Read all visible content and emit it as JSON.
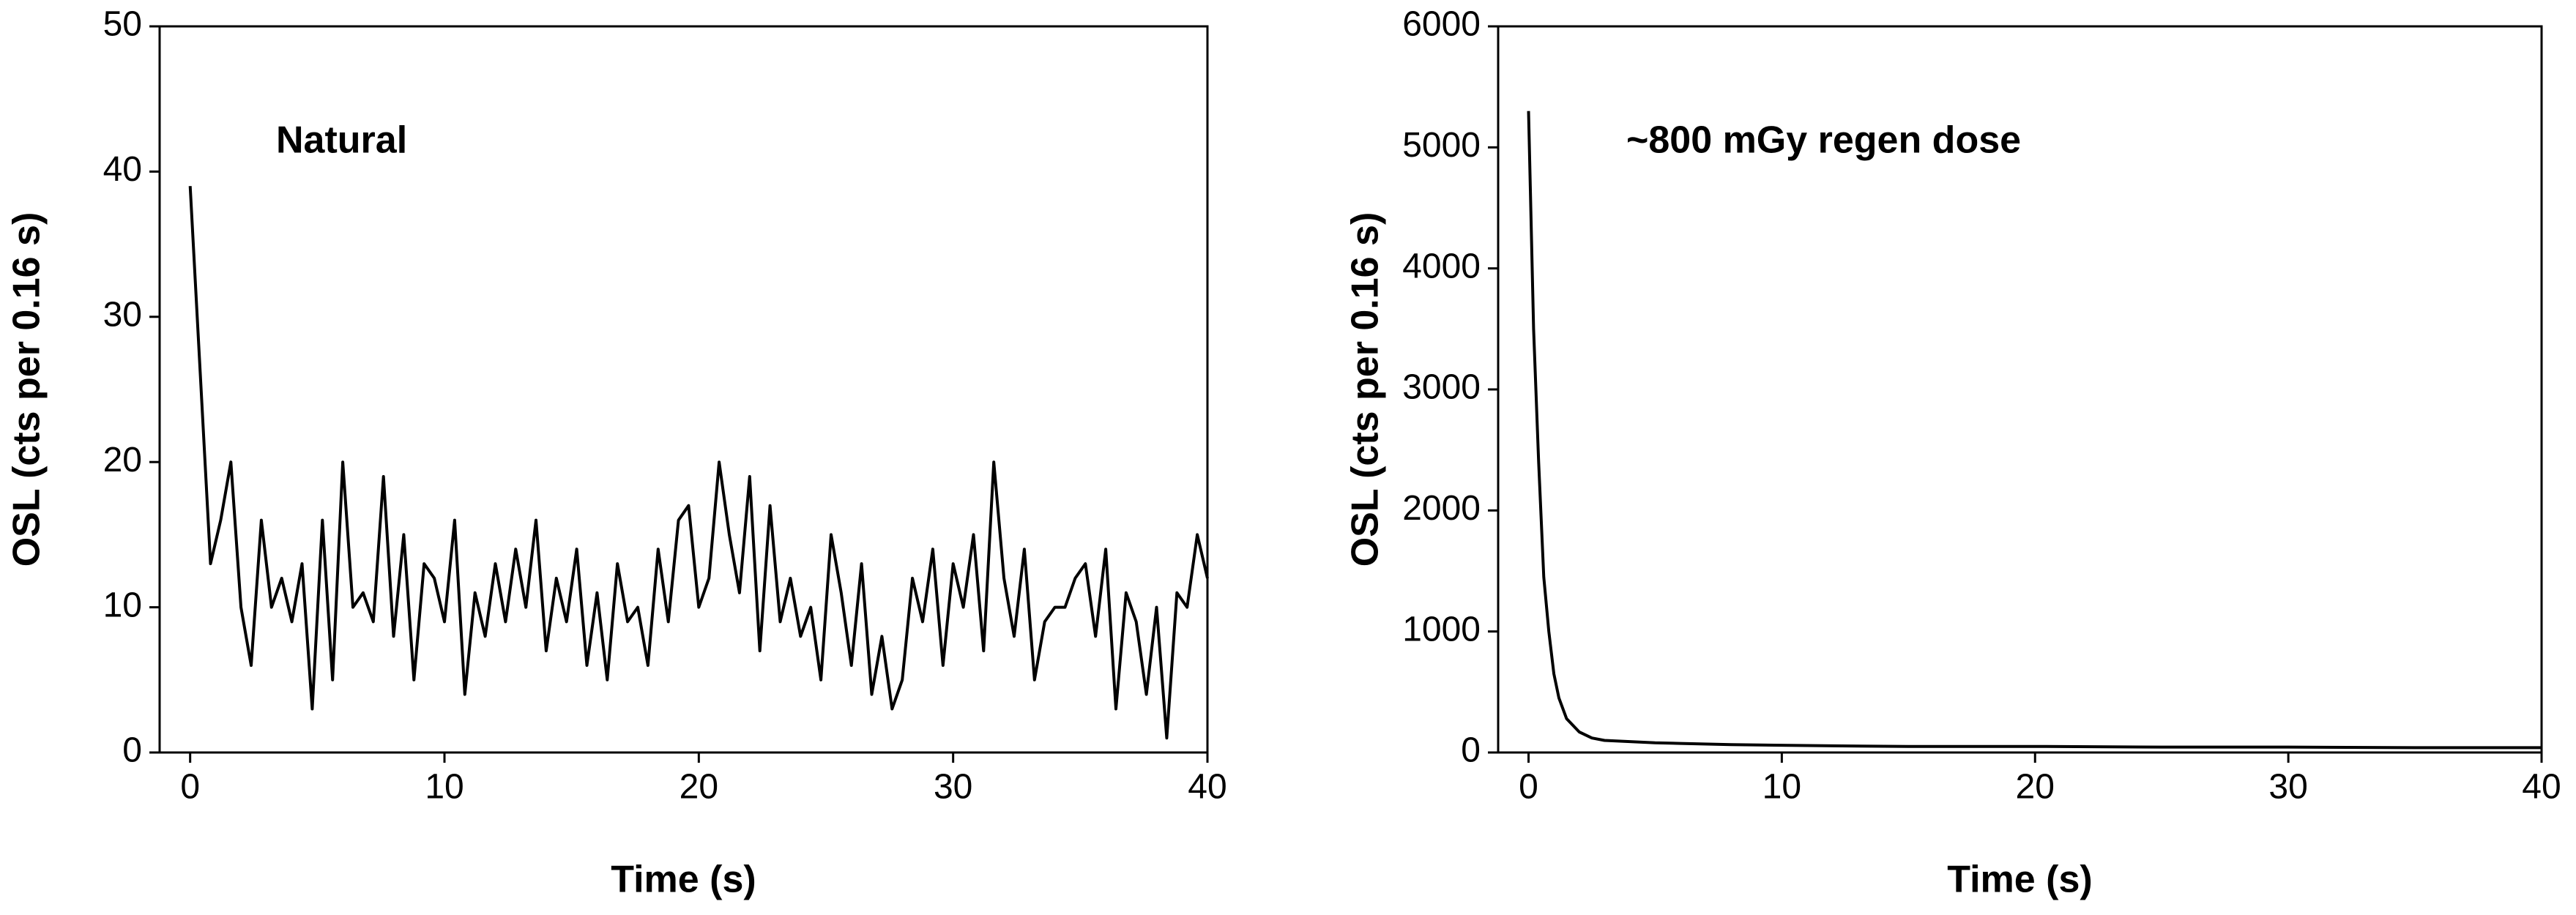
{
  "chart_data": [
    {
      "type": "line",
      "annotation": "Natural",
      "xlabel": "Time (s)",
      "ylabel": "OSL (cts per 0.16 s)",
      "x": [
        0,
        0.4,
        0.8,
        1.2,
        1.6,
        2,
        2.4,
        2.8,
        3.2,
        3.6,
        4,
        4.4,
        4.8,
        5.2,
        5.6,
        6,
        6.4,
        6.8,
        7.2,
        7.6,
        8,
        8.4,
        8.8,
        9.2,
        9.6,
        10,
        10.4,
        10.8,
        11.2,
        11.6,
        12,
        12.4,
        12.8,
        13.2,
        13.6,
        14,
        14.4,
        14.8,
        15.2,
        15.6,
        16,
        16.4,
        16.8,
        17.2,
        17.6,
        18,
        18.4,
        18.8,
        19.2,
        19.6,
        20,
        20.4,
        20.8,
        21.2,
        21.6,
        22,
        22.4,
        22.8,
        23.2,
        23.6,
        24,
        24.4,
        24.8,
        25.2,
        25.6,
        26,
        26.4,
        26.8,
        27.2,
        27.6,
        28,
        28.4,
        28.8,
        29.2,
        29.6,
        30,
        30.4,
        30.8,
        31.2,
        31.6,
        32,
        32.4,
        32.8,
        33.2,
        33.6,
        34,
        34.4,
        34.8,
        35.2,
        35.6,
        36,
        36.4,
        36.8,
        37.2,
        37.6,
        38,
        38.4,
        38.8,
        39.2,
        39.6,
        40
      ],
      "values": [
        39,
        26,
        13,
        16,
        20,
        10,
        6,
        16,
        10,
        12,
        9,
        13,
        3,
        16,
        5,
        20,
        10,
        11,
        9,
        19,
        8,
        15,
        5,
        13,
        12,
        9,
        16,
        4,
        11,
        8,
        13,
        9,
        14,
        10,
        16,
        7,
        12,
        9,
        14,
        6,
        11,
        5,
        13,
        9,
        10,
        6,
        14,
        9,
        16,
        17,
        10,
        12,
        20,
        15,
        11,
        19,
        7,
        17,
        9,
        12,
        8,
        10,
        5,
        15,
        11,
        6,
        13,
        4,
        8,
        3,
        5,
        12,
        9,
        14,
        6,
        13,
        10,
        15,
        7,
        20,
        12,
        8,
        14,
        5,
        9,
        10,
        10,
        12,
        13,
        8,
        14,
        3,
        11,
        9,
        4,
        10,
        1,
        11,
        10,
        15,
        12
      ],
      "color": "#000000",
      "xlim": [
        -1.2,
        40
      ],
      "ylim": [
        0,
        50
      ],
      "xticks": [
        0,
        10,
        20,
        30,
        40
      ],
      "yticks": [
        0,
        10,
        20,
        30,
        40,
        50
      ]
    },
    {
      "type": "line",
      "annotation": "~800 mGy regen dose",
      "xlabel": "Time (s)",
      "ylabel": "OSL (cts per 0.16 s)",
      "x": [
        0,
        0.2,
        0.4,
        0.6,
        0.8,
        1,
        1.2,
        1.5,
        2,
        2.5,
        3,
        4,
        5,
        6,
        8,
        10,
        12,
        15,
        20,
        25,
        30,
        35,
        40
      ],
      "values": [
        5300,
        3500,
        2400,
        1450,
        1000,
        650,
        450,
        280,
        170,
        120,
        100,
        90,
        80,
        75,
        65,
        60,
        55,
        50,
        50,
        45,
        45,
        40,
        40
      ],
      "color": "#000000",
      "xlim": [
        -1.2,
        40
      ],
      "ylim": [
        0,
        6000
      ],
      "xticks": [
        0,
        10,
        20,
        30,
        40
      ],
      "yticks": [
        0,
        1000,
        2000,
        3000,
        4000,
        5000,
        6000
      ]
    }
  ]
}
